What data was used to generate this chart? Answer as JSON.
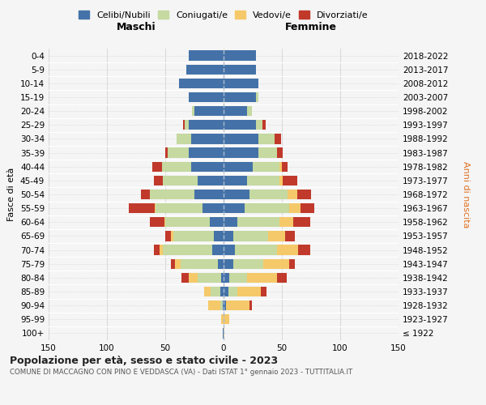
{
  "age_groups": [
    "100+",
    "95-99",
    "90-94",
    "85-89",
    "80-84",
    "75-79",
    "70-74",
    "65-69",
    "60-64",
    "55-59",
    "50-54",
    "45-49",
    "40-44",
    "35-39",
    "30-34",
    "25-29",
    "20-24",
    "15-19",
    "10-14",
    "5-9",
    "0-4"
  ],
  "birth_years": [
    "≤ 1922",
    "1923-1927",
    "1928-1932",
    "1933-1937",
    "1938-1942",
    "1943-1947",
    "1948-1952",
    "1953-1957",
    "1958-1962",
    "1963-1967",
    "1968-1972",
    "1973-1977",
    "1978-1982",
    "1983-1987",
    "1988-1992",
    "1993-1997",
    "1998-2002",
    "2003-2007",
    "2008-2012",
    "2013-2017",
    "2018-2022"
  ],
  "maschi_celibi": [
    1,
    0,
    1,
    3,
    2,
    5,
    10,
    8,
    12,
    18,
    25,
    22,
    28,
    30,
    28,
    30,
    25,
    30,
    38,
    32,
    30
  ],
  "maschi_coniugati": [
    0,
    0,
    2,
    8,
    20,
    32,
    42,
    35,
    38,
    40,
    38,
    30,
    25,
    18,
    12,
    3,
    2,
    0,
    0,
    0,
    0
  ],
  "maschi_vedovi": [
    0,
    2,
    10,
    6,
    8,
    5,
    3,
    2,
    1,
    1,
    0,
    0,
    0,
    0,
    0,
    0,
    0,
    0,
    0,
    0,
    0
  ],
  "maschi_divorziati": [
    0,
    0,
    0,
    0,
    6,
    3,
    5,
    5,
    12,
    22,
    8,
    8,
    8,
    2,
    0,
    2,
    0,
    0,
    0,
    0,
    0
  ],
  "femmine_celibi": [
    0,
    0,
    2,
    4,
    5,
    8,
    10,
    8,
    12,
    18,
    22,
    20,
    25,
    30,
    30,
    28,
    20,
    28,
    30,
    28,
    28
  ],
  "femmine_coniugati": [
    0,
    0,
    0,
    8,
    15,
    26,
    36,
    30,
    36,
    38,
    33,
    28,
    23,
    16,
    14,
    5,
    4,
    2,
    0,
    0,
    0
  ],
  "femmine_vedovi": [
    1,
    5,
    20,
    20,
    26,
    22,
    18,
    15,
    12,
    10,
    8,
    3,
    2,
    0,
    0,
    0,
    0,
    0,
    0,
    0,
    0
  ],
  "femmine_divorziati": [
    0,
    0,
    2,
    5,
    8,
    5,
    10,
    8,
    14,
    12,
    12,
    12,
    5,
    5,
    5,
    3,
    0,
    0,
    0,
    0,
    0
  ],
  "color_celibi": "#4472a8",
  "color_coniugati": "#c5d9a0",
  "color_vedovi": "#f5c96a",
  "color_divorziati": "#c0392b",
  "legend_labels": [
    "Celibi/Nubili",
    "Coniugati/e",
    "Vedovi/e",
    "Divorziati/e"
  ],
  "title": "Popolazione per età, sesso e stato civile - 2023",
  "subtitle": "COMUNE DI MACCAGNO CON PINO E VEDDASCA (VA) - Dati ISTAT 1° gennaio 2023 - TUTTITALIA.IT",
  "label_maschi": "Maschi",
  "label_femmine": "Femmine",
  "ylabel_left": "Fasce di età",
  "ylabel_right": "Anni di nascita",
  "xlim": 150,
  "bg_color": "#f5f5f5",
  "grid_color": "#cccccc",
  "bar_height": 0.72
}
